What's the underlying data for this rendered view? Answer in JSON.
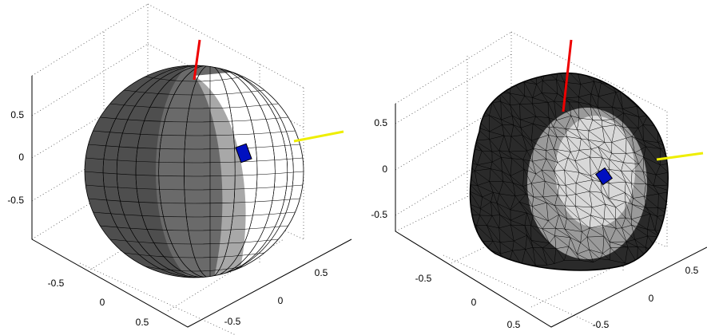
{
  "panels": [
    {
      "z_ticks": [
        "0.5",
        "0",
        "-0.5"
      ],
      "x_ticks": [
        "-0.5",
        "0",
        "0.5"
      ],
      "y_ticks": [
        "0.5",
        "0",
        "-0.5"
      ]
    },
    {
      "z_ticks": [
        "0.5",
        "0",
        "-0.5"
      ],
      "x_ticks": [
        "-0.5",
        "0",
        "0.5"
      ],
      "y_ticks": [
        "0.5",
        "0",
        "-0.5"
      ]
    }
  ]
}
